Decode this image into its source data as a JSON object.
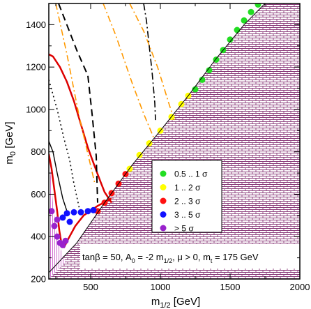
{
  "chart_data": {
    "type": "scatter",
    "xlim": [
      200,
      2000
    ],
    "ylim": [
      200,
      1500
    ],
    "xlabel": {
      "base": "m",
      "sub": "1/2",
      "suffix": " [GeV]"
    },
    "ylabel": {
      "base": "m",
      "sub": "0",
      "suffix": " [GeV]"
    },
    "xticks": [
      "500",
      "1000",
      "1500",
      "2000"
    ],
    "yticks": [
      "200",
      "400",
      "600",
      "800",
      "1000",
      "1200",
      "1400"
    ],
    "xtick_values": [
      500,
      1000,
      1500,
      2000
    ],
    "ytick_values": [
      200,
      400,
      600,
      800,
      1000,
      1200,
      1400
    ],
    "annotation": {
      "p1": "tanβ = 50, A",
      "s1": "0",
      "p2": " = -2 m",
      "s2": "1/2",
      "p3": ", μ > 0, m",
      "s3": "t",
      "p4": " = 175 GeV"
    },
    "legend": {
      "position": "center-right",
      "entries": [
        {
          "label": "0.5 .. 1 σ",
          "color": "#22dd22"
        },
        {
          "label": "1 .. 2 σ",
          "color": "#ffff00"
        },
        {
          "label": "2 .. 3 σ",
          "color": "#ff1111"
        },
        {
          "label": "3 .. 5 σ",
          "color": "#1111ff"
        },
        {
          "label": "> 5 σ",
          "color": "#9922cc"
        }
      ]
    },
    "excluded_boundary": [
      [
        200,
        230
      ],
      [
        400,
        370
      ],
      [
        600,
        560
      ],
      [
        800,
        740
      ],
      [
        1000,
        900
      ],
      [
        1200,
        1065
      ],
      [
        1400,
        1240
      ],
      [
        1600,
        1400
      ],
      [
        1750,
        1500
      ]
    ],
    "series": [
      {
        "color": "#22dd22",
        "points": [
          [
            1250,
            1095
          ],
          [
            1300,
            1140
          ],
          [
            1350,
            1185
          ],
          [
            1400,
            1235
          ],
          [
            1450,
            1280
          ],
          [
            1500,
            1330
          ],
          [
            1550,
            1375
          ],
          [
            1600,
            1420
          ],
          [
            1650,
            1460
          ],
          [
            1700,
            1495
          ]
        ]
      },
      {
        "color": "#ffff00",
        "points": [
          [
            780,
            720
          ],
          [
            850,
            785
          ],
          [
            920,
            840
          ],
          [
            1000,
            900
          ],
          [
            1080,
            965
          ],
          [
            1150,
            1025
          ],
          [
            1200,
            1065
          ]
        ]
      },
      {
        "color": "#ff1111",
        "points": [
          [
            550,
            520
          ],
          [
            600,
            560
          ],
          [
            650,
            605
          ],
          [
            700,
            650
          ],
          [
            750,
            695
          ]
        ]
      },
      {
        "color": "#1111ff",
        "points": [
          [
            330,
            510
          ],
          [
            380,
            515
          ],
          [
            430,
            515
          ],
          [
            480,
            520
          ],
          [
            520,
            525
          ],
          [
            300,
            490
          ],
          [
            350,
            470
          ]
        ]
      },
      {
        "color": "#9922cc",
        "points": [
          [
            220,
            520
          ],
          [
            240,
            450
          ],
          [
            260,
            400
          ],
          [
            280,
            370
          ],
          [
            300,
            360
          ],
          [
            320,
            380
          ],
          [
            260,
            480
          ]
        ]
      }
    ],
    "lines": [
      {
        "color": "#dd0000",
        "dash": "",
        "width": 2.5,
        "points": [
          [
            200,
            1260
          ],
          [
            230,
            1250
          ],
          [
            280,
            1200
          ],
          [
            330,
            1130
          ],
          [
            380,
            1040
          ],
          [
            430,
            930
          ],
          [
            480,
            820
          ],
          [
            530,
            730
          ],
          [
            570,
            660
          ],
          [
            600,
            610
          ],
          [
            650,
            560
          ]
        ]
      },
      {
        "color": "#dd0000",
        "dash": "",
        "width": 2.5,
        "points": [
          [
            200,
            790
          ],
          [
            220,
            720
          ],
          [
            240,
            620
          ],
          [
            260,
            520
          ],
          [
            275,
            430
          ],
          [
            290,
            370
          ],
          [
            310,
            350
          ],
          [
            340,
            390
          ],
          [
            390,
            450
          ],
          [
            450,
            500
          ],
          [
            550,
            545
          ],
          [
            650,
            580
          ]
        ]
      },
      {
        "color": "#000000",
        "dash": "10,6",
        "width": 2,
        "points": [
          [
            270,
            1500
          ],
          [
            400,
            1280
          ],
          [
            480,
            1160
          ],
          [
            510,
            980
          ],
          [
            540,
            780
          ],
          [
            550,
            560
          ]
        ]
      },
      {
        "color": "#000000",
        "dash": "10,4,2,4",
        "width": 1.6,
        "points": [
          [
            880,
            1500
          ],
          [
            900,
            1420
          ],
          [
            940,
            1180
          ],
          [
            960,
            1030
          ],
          [
            965,
            950
          ]
        ]
      },
      {
        "color": "#000000",
        "dash": "2,4",
        "width": 1.6,
        "points": [
          [
            200,
            1140
          ],
          [
            260,
            1000
          ],
          [
            310,
            860
          ],
          [
            350,
            760
          ],
          [
            380,
            650
          ],
          [
            420,
            530
          ]
        ]
      },
      {
        "color": "#000000",
        "dash": "",
        "width": 1.4,
        "points": [
          [
            200,
            850
          ],
          [
            230,
            800
          ],
          [
            260,
            700
          ],
          [
            300,
            580
          ],
          [
            340,
            500
          ]
        ]
      },
      {
        "color": "#ff9900",
        "dash": "9,4,2,4",
        "width": 1.6,
        "points": [
          [
            250,
            1500
          ],
          [
            330,
            1260
          ],
          [
            420,
            960
          ],
          [
            530,
            650
          ]
        ]
      },
      {
        "color": "#ff9900",
        "dash": "9,4,2,4",
        "width": 1.6,
        "points": [
          [
            590,
            1500
          ],
          [
            680,
            1350
          ],
          [
            800,
            1120
          ],
          [
            880,
            980
          ],
          [
            950,
            870
          ]
        ]
      },
      {
        "color": "#ff9900",
        "dash": "9,4,2,4",
        "width": 1.6,
        "points": [
          [
            780,
            1500
          ],
          [
            880,
            1370
          ],
          [
            980,
            1200
          ],
          [
            1060,
            1030
          ],
          [
            1100,
            950
          ]
        ]
      }
    ]
  }
}
